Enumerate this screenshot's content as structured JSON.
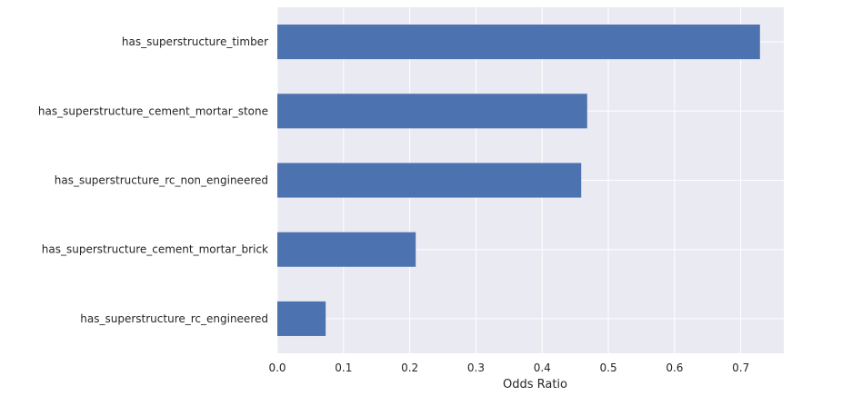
{
  "chart_data": {
    "type": "bar",
    "orientation": "horizontal",
    "categories": [
      "has_superstructure_timber",
      "has_superstructure_cement_mortar_stone",
      "has_superstructure_rc_non_engineered",
      "has_superstructure_cement_mortar_brick",
      "has_superstructure_rc_engineered"
    ],
    "values": [
      0.729,
      0.468,
      0.459,
      0.209,
      0.073
    ],
    "xlabel": "Odds Ratio",
    "ylabel": "",
    "xlim": [
      0,
      0.765
    ],
    "xticks": [
      "0.0",
      "0.1",
      "0.2",
      "0.3",
      "0.4",
      "0.5",
      "0.6",
      "0.7"
    ],
    "grid": true,
    "bar_color": "#4c72b0",
    "plot_background": "#eaeaf2",
    "grid_color": "#ffffff"
  }
}
